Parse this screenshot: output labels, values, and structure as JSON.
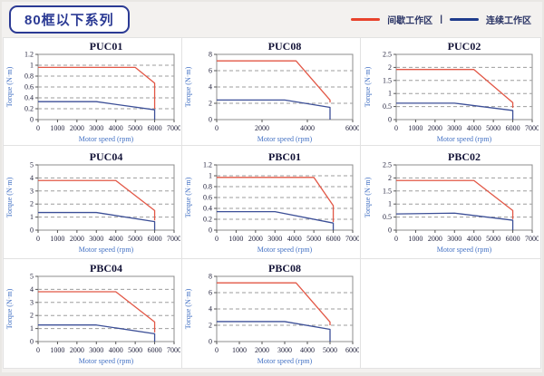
{
  "header": {
    "title": "80框以下系列"
  },
  "legend": {
    "intermittent_label": "间歇工作区",
    "separator": "|",
    "continuous_label": "连续工作区",
    "intermittent_color": "#e8432c",
    "continuous_color": "#1f3c8c"
  },
  "chart_data": [
    {
      "type": "line",
      "title": "PUC01",
      "xlabel": "Motor speed (rpm)",
      "ylabel": "Torque (N·m)",
      "xlim": [
        0,
        7000
      ],
      "ylim": [
        0,
        1.2
      ],
      "grid": true,
      "xticks": [
        0,
        1000,
        2000,
        3000,
        4000,
        5000,
        6000,
        7000
      ],
      "yticks": [
        0,
        0.2,
        0.4,
        0.6,
        0.8,
        1,
        1.2
      ],
      "series": [
        {
          "name": "间歇工作区",
          "color": "#e25746",
          "points": [
            [
              0,
              0.96
            ],
            [
              5000,
              0.96
            ],
            [
              6000,
              0.67
            ],
            [
              6000,
              0.2
            ]
          ]
        },
        {
          "name": "连续工作区",
          "color": "#3c4f97",
          "points": [
            [
              0,
              0.33
            ],
            [
              3000,
              0.33
            ],
            [
              6000,
              0.18
            ],
            [
              6000,
              0
            ]
          ]
        }
      ]
    },
    {
      "type": "line",
      "title": "PUC08",
      "xlabel": "Motor speed (rpm)",
      "ylabel": "Torque (N·m)",
      "xlim": [
        0,
        6000
      ],
      "ylim": [
        0,
        8
      ],
      "grid": true,
      "xticks": [
        0,
        2000,
        4000,
        6000
      ],
      "yticks": [
        0,
        2,
        4,
        6,
        8
      ],
      "series": [
        {
          "name": "间歇工作区",
          "color": "#e25746",
          "points": [
            [
              0,
              7.2
            ],
            [
              3500,
              7.2
            ],
            [
              5000,
              2.4
            ],
            [
              5000,
              2.1
            ]
          ]
        },
        {
          "name": "连续工作区",
          "color": "#3c4f97",
          "points": [
            [
              0,
              2.4
            ],
            [
              3000,
              2.4
            ],
            [
              5000,
              1.5
            ],
            [
              5000,
              0
            ]
          ]
        }
      ]
    },
    {
      "type": "line",
      "title": "PUC02",
      "xlabel": "Motor speed (rpm)",
      "ylabel": "Torque (N·m)",
      "xlim": [
        0,
        7000
      ],
      "ylim": [
        0,
        2.5
      ],
      "grid": true,
      "xticks": [
        0,
        1000,
        2000,
        3000,
        4000,
        5000,
        6000,
        7000
      ],
      "yticks": [
        0,
        0.5,
        1,
        1.5,
        2,
        2.5
      ],
      "series": [
        {
          "name": "间歇工作区",
          "color": "#e25746",
          "points": [
            [
              0,
              1.92
            ],
            [
              4000,
              1.92
            ],
            [
              6000,
              0.65
            ],
            [
              6000,
              0.45
            ]
          ]
        },
        {
          "name": "连续工作区",
          "color": "#3c4f97",
          "points": [
            [
              0,
              0.63
            ],
            [
              3000,
              0.63
            ],
            [
              6000,
              0.35
            ],
            [
              6000,
              0
            ]
          ]
        }
      ]
    },
    {
      "type": "line",
      "title": "PUC04",
      "xlabel": "Motor speed (rpm)",
      "ylabel": "Torque (N·m)",
      "xlim": [
        0,
        7000
      ],
      "ylim": [
        0,
        5
      ],
      "grid": true,
      "xticks": [
        0,
        1000,
        2000,
        3000,
        4000,
        5000,
        6000,
        7000
      ],
      "yticks": [
        0,
        1,
        2,
        3,
        4,
        5
      ],
      "series": [
        {
          "name": "间歇工作区",
          "color": "#e25746",
          "points": [
            [
              0,
              3.8
            ],
            [
              4000,
              3.8
            ],
            [
              6000,
              1.5
            ],
            [
              6000,
              0.75
            ]
          ]
        },
        {
          "name": "连续工作区",
          "color": "#3c4f97",
          "points": [
            [
              0,
              1.35
            ],
            [
              3000,
              1.35
            ],
            [
              6000,
              0.65
            ],
            [
              6000,
              0
            ]
          ]
        }
      ]
    },
    {
      "type": "line",
      "title": "PBC01",
      "xlabel": "Motor speed (rpm)",
      "ylabel": "Torque (N·m)",
      "xlim": [
        0,
        7000
      ],
      "ylim": [
        0,
        1.2
      ],
      "grid": true,
      "xticks": [
        0,
        1000,
        2000,
        3000,
        4000,
        5000,
        6000,
        7000
      ],
      "yticks": [
        0,
        0.2,
        0.4,
        0.6,
        0.8,
        1,
        1.2
      ],
      "series": [
        {
          "name": "间歇工作区",
          "color": "#e25746",
          "points": [
            [
              0,
              0.97
            ],
            [
              5000,
              0.97
            ],
            [
              6000,
              0.45
            ],
            [
              6000,
              0.15
            ]
          ]
        },
        {
          "name": "连续工作区",
          "color": "#3c4f97",
          "points": [
            [
              0,
              0.34
            ],
            [
              3000,
              0.34
            ],
            [
              6000,
              0.13
            ],
            [
              6000,
              0
            ]
          ]
        }
      ]
    },
    {
      "type": "line",
      "title": "PBC02",
      "xlabel": "Motor speed (rpm)",
      "ylabel": "Torque (N·m)",
      "xlim": [
        0,
        7000
      ],
      "ylim": [
        0,
        2.5
      ],
      "grid": true,
      "xticks": [
        0,
        1000,
        2000,
        3000,
        4000,
        5000,
        6000,
        7000
      ],
      "yticks": [
        0,
        0.5,
        1,
        1.5,
        2,
        2.5
      ],
      "series": [
        {
          "name": "间歇工作区",
          "color": "#e25746",
          "points": [
            [
              0,
              1.9
            ],
            [
              4000,
              1.9
            ],
            [
              6000,
              0.75
            ],
            [
              6000,
              0.42
            ]
          ]
        },
        {
          "name": "连续工作区",
          "color": "#3c4f97",
          "points": [
            [
              0,
              0.62
            ],
            [
              3000,
              0.65
            ],
            [
              6000,
              0.38
            ],
            [
              6000,
              0
            ]
          ]
        }
      ]
    },
    {
      "type": "line",
      "title": "PBC04",
      "xlabel": "Motor speed (rpm)",
      "ylabel": "Torque (N·m)",
      "xlim": [
        0,
        7000
      ],
      "ylim": [
        0,
        5
      ],
      "grid": true,
      "xticks": [
        0,
        1000,
        2000,
        3000,
        4000,
        5000,
        6000,
        7000
      ],
      "yticks": [
        0,
        1,
        2,
        3,
        4,
        5
      ],
      "series": [
        {
          "name": "间歇工作区",
          "color": "#e25746",
          "points": [
            [
              0,
              3.82
            ],
            [
              4000,
              3.82
            ],
            [
              6000,
              1.5
            ],
            [
              6000,
              0.7
            ]
          ]
        },
        {
          "name": "连续工作区",
          "color": "#3c4f97",
          "points": [
            [
              0,
              1.27
            ],
            [
              3000,
              1.27
            ],
            [
              6000,
              0.6
            ],
            [
              6000,
              0
            ]
          ]
        }
      ]
    },
    {
      "type": "line",
      "title": "PBC08",
      "xlabel": "Motor speed (rpm)",
      "ylabel": "Torque (N·m)",
      "xlim": [
        0,
        6000
      ],
      "ylim": [
        0,
        8
      ],
      "grid": true,
      "xticks": [
        0,
        1000,
        2000,
        3000,
        4000,
        5000,
        6000
      ],
      "yticks": [
        0,
        2,
        4,
        6,
        8
      ],
      "series": [
        {
          "name": "间歇工作区",
          "color": "#e25746",
          "points": [
            [
              0,
              7.2
            ],
            [
              3500,
              7.2
            ],
            [
              5000,
              2.4
            ],
            [
              5000,
              2.0
            ]
          ]
        },
        {
          "name": "连续工作区",
          "color": "#3c4f97",
          "points": [
            [
              0,
              2.45
            ],
            [
              3000,
              2.45
            ],
            [
              5000,
              1.5
            ],
            [
              5000,
              0
            ]
          ]
        }
      ]
    }
  ]
}
